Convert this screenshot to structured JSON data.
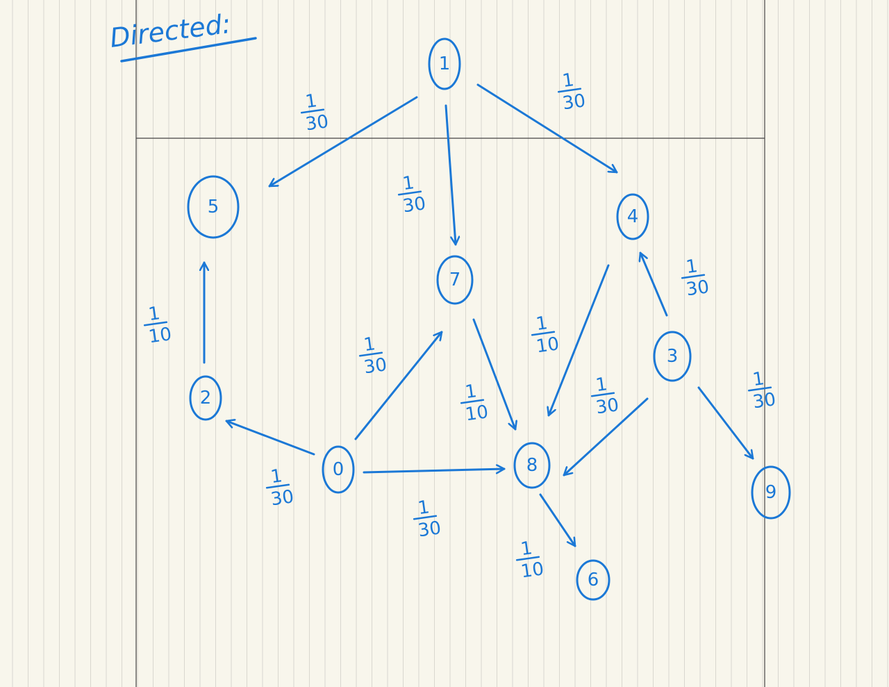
{
  "title": "Directed:",
  "ink_color": "#1b78d6",
  "nodes": [
    {
      "id": "n1",
      "label": "1"
    },
    {
      "id": "n5",
      "label": "5"
    },
    {
      "id": "n4top",
      "label": "4"
    },
    {
      "id": "n7",
      "label": "7"
    },
    {
      "id": "n2",
      "label": "2"
    },
    {
      "id": "n0",
      "label": "0"
    },
    {
      "id": "n3",
      "label": "3"
    },
    {
      "id": "n8",
      "label": "8"
    },
    {
      "id": "n9",
      "label": "9"
    },
    {
      "id": "n6",
      "label": "6"
    }
  ],
  "edges": [
    {
      "from": "n1",
      "to": "n5",
      "weight_num": "1",
      "weight_den": "30"
    },
    {
      "from": "n1",
      "to": "n4top",
      "weight_num": "1",
      "weight_den": "30"
    },
    {
      "from": "n1",
      "to": "n7",
      "weight_num": "1",
      "weight_den": "30"
    },
    {
      "from": "n2",
      "to": "n5",
      "weight_num": "1",
      "weight_den": "10"
    },
    {
      "from": "n0",
      "to": "n2",
      "weight_num": "1",
      "weight_den": "30"
    },
    {
      "from": "n0",
      "to": "n4top",
      "weight_num": "1",
      "weight_den": "30"
    },
    {
      "from": "n0",
      "to": "n8",
      "weight_num": "1",
      "weight_den": "30"
    },
    {
      "from": "n4top",
      "to": "n8",
      "weight_num": "1",
      "weight_den": "10"
    },
    {
      "from": "n7",
      "to": "n8",
      "weight_num": "1",
      "weight_den": "10"
    },
    {
      "from": "n3",
      "to": "n7",
      "weight_num": "1",
      "weight_den": "30"
    },
    {
      "from": "n3",
      "to": "n8",
      "weight_num": "1",
      "weight_den": "30"
    },
    {
      "from": "n3",
      "to": "n9",
      "weight_num": "1",
      "weight_den": "30"
    },
    {
      "from": "n8",
      "to": "n6",
      "weight_num": "1",
      "weight_den": "10"
    }
  ]
}
